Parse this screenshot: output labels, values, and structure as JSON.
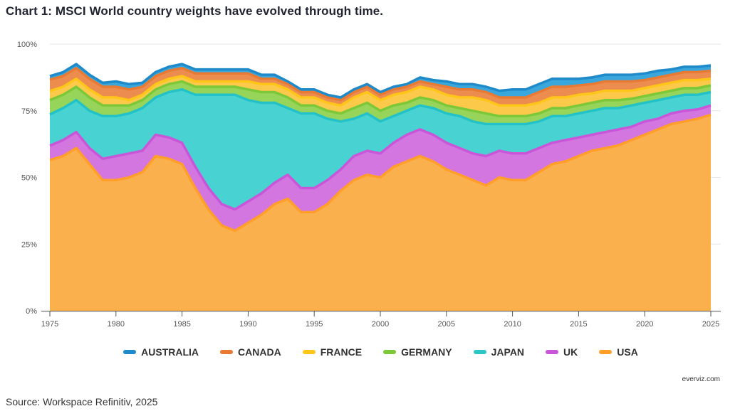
{
  "title": "Chart 1: MSCI World country weights have evolved through time.",
  "credit": "everviz.com",
  "source": "Source: Workspace Refinitiv, 2025",
  "chart_data": {
    "type": "area",
    "stacked": true,
    "title": "Chart 1: MSCI World country weights have evolved through time.",
    "xlabel": "",
    "ylabel": "",
    "xlim": [
      1975,
      2025
    ],
    "ylim": [
      0,
      100
    ],
    "grid": true,
    "legend_position": "bottom",
    "x_ticks": [
      "1975",
      "1980",
      "1985",
      "1990",
      "1995",
      "2000",
      "2005",
      "2010",
      "2015",
      "2020",
      "2025"
    ],
    "y_ticks": [
      "0%",
      "25%",
      "50%",
      "75%",
      "100%"
    ],
    "x": [
      1975,
      1976,
      1977,
      1978,
      1979,
      1980,
      1981,
      1982,
      1983,
      1984,
      1985,
      1986,
      1987,
      1988,
      1989,
      1990,
      1991,
      1992,
      1993,
      1994,
      1995,
      1996,
      1997,
      1998,
      1999,
      2000,
      2001,
      2002,
      2003,
      2004,
      2005,
      2006,
      2007,
      2008,
      2009,
      2010,
      2011,
      2012,
      2013,
      2014,
      2015,
      2016,
      2017,
      2018,
      2019,
      2020,
      2021,
      2022,
      2023,
      2024,
      2025
    ],
    "series": [
      {
        "name": "USA",
        "color": "#fbb04e",
        "values": [
          56.5,
          58,
          61,
          55,
          49,
          49,
          50,
          52,
          58,
          57,
          55,
          46,
          38,
          32,
          30,
          33,
          36,
          40,
          42,
          37,
          37,
          40,
          45,
          49,
          51,
          50,
          54,
          56,
          58,
          56,
          53,
          51,
          49,
          47,
          50,
          49,
          49,
          52,
          55,
          56,
          58,
          60,
          61,
          62,
          64,
          66,
          68,
          70,
          71,
          72,
          73.5
        ]
      },
      {
        "name": "UK",
        "color": "#d376e0",
        "values": [
          5.4,
          6,
          6,
          6,
          8,
          9,
          9,
          8,
          8,
          8,
          8,
          8,
          8,
          8,
          8,
          8,
          8,
          8,
          9,
          9,
          9,
          9,
          8,
          9,
          9,
          9,
          9,
          10,
          10,
          10,
          10,
          10,
          10,
          11,
          10,
          10,
          10,
          9,
          8,
          8,
          7,
          6,
          6,
          6,
          5,
          5,
          4,
          4,
          4,
          3.5,
          3.5
        ]
      },
      {
        "name": "JAPAN",
        "color": "#48d3d2",
        "values": [
          11.7,
          12,
          12,
          14,
          16,
          15,
          15,
          16,
          14,
          17,
          20,
          27,
          35,
          41,
          43,
          38,
          34,
          30,
          25,
          28,
          28,
          23,
          18,
          14,
          14,
          12,
          10,
          9,
          9,
          10,
          11,
          12,
          12,
          12,
          10,
          11,
          11,
          10,
          10,
          9,
          9,
          9,
          9,
          8,
          8,
          7,
          7,
          6,
          6,
          5.5,
          5
        ]
      },
      {
        "name": "GERMANY",
        "color": "#96d45a",
        "values": [
          5.4,
          5,
          5,
          5,
          4,
          4,
          3,
          3,
          3,
          3,
          3,
          3,
          3,
          3,
          3,
          4,
          4,
          4,
          4,
          3,
          3,
          3,
          3,
          4,
          4,
          4,
          4,
          3,
          3,
          3,
          3,
          3,
          4,
          4,
          3,
          3,
          3,
          3,
          3,
          3,
          3,
          3,
          3,
          3,
          2.5,
          2.5,
          2.5,
          2.5,
          2.5,
          2.5,
          2.5
        ]
      },
      {
        "name": "FRANCE",
        "color": "#fcc94a",
        "values": [
          3.4,
          3,
          3,
          3,
          3,
          3,
          2,
          2,
          2,
          2,
          2,
          2,
          2,
          2,
          2,
          3,
          3,
          3,
          3,
          3,
          3,
          3,
          3,
          4,
          4,
          4,
          4,
          4,
          4,
          4,
          4,
          4,
          5,
          5,
          4,
          4,
          4,
          4,
          4,
          4,
          4,
          3.5,
          3.5,
          3.5,
          3,
          3,
          3,
          3,
          3,
          3,
          2.5
        ]
      },
      {
        "name": "CANADA",
        "color": "#ec8d4f",
        "values": [
          4.3,
          4,
          4,
          4,
          4,
          4,
          4,
          3,
          3,
          3,
          3,
          3,
          3,
          3,
          3,
          3,
          2,
          2,
          2,
          2,
          2,
          2,
          2,
          2,
          2,
          2,
          2,
          2,
          2,
          2,
          3,
          3,
          3,
          3,
          3,
          3,
          3,
          4,
          4,
          4,
          3.5,
          3.5,
          3.5,
          3.5,
          3.5,
          3,
          3,
          3,
          3,
          3,
          3
        ]
      },
      {
        "name": "AUSTRALIA",
        "color": "#3aa7dc",
        "values": [
          1.3,
          1.5,
          1.5,
          1.5,
          1.5,
          2,
          2,
          1.5,
          1.5,
          1.5,
          1.5,
          1.5,
          1.5,
          1.5,
          1.5,
          1.5,
          1.5,
          1.5,
          1,
          1,
          1,
          1,
          1,
          1,
          1,
          1,
          1,
          1,
          1.5,
          1.5,
          2,
          2,
          2,
          2,
          2.5,
          3,
          3,
          3,
          3,
          3,
          2.5,
          2.5,
          2.5,
          2.5,
          2.5,
          2.5,
          2.5,
          2,
          2,
          2,
          2
        ]
      }
    ]
  },
  "legend": {
    "items": [
      {
        "label": "AUSTRALIA",
        "color": "#1f8ac9"
      },
      {
        "label": "CANADA",
        "color": "#e87a34"
      },
      {
        "label": "FRANCE",
        "color": "#ffc61a"
      },
      {
        "label": "GERMANY",
        "color": "#7cc838"
      },
      {
        "label": "JAPAN",
        "color": "#2cc6c6"
      },
      {
        "label": "UK",
        "color": "#c955d8"
      },
      {
        "label": "USA",
        "color": "#ff9f2a"
      }
    ]
  },
  "line_colors": {
    "USA": "#ff9f2a",
    "UK": "#c955d8",
    "JAPAN": "#22c2c8",
    "GERMANY": "#7cc838",
    "FRANCE": "#ffc61a",
    "CANADA": "#e87a34",
    "AUSTRALIA": "#1f8ac9"
  }
}
